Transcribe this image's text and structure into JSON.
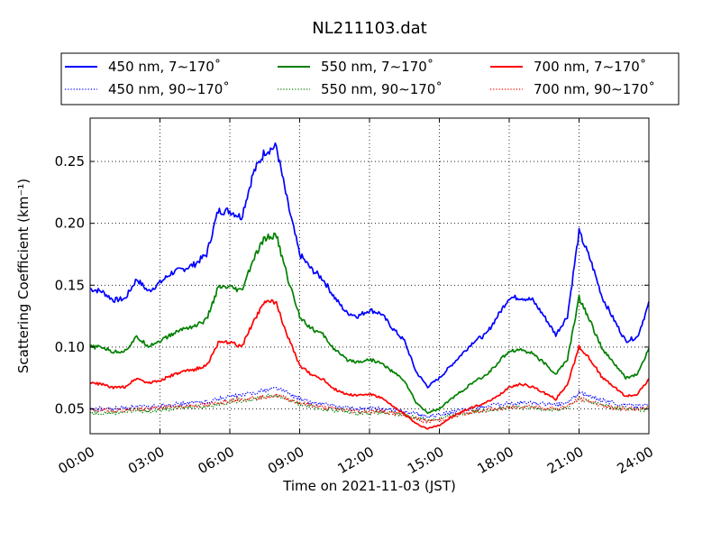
{
  "chart_data": {
    "type": "line",
    "title": "NL211103.dat",
    "xlabel": "Time on 2021-11-03 (JST)",
    "ylabel": "Scattering Coefficient (km⁻¹)",
    "xlim": [
      0,
      24
    ],
    "ylim": [
      0.03,
      0.285
    ],
    "grid": true,
    "legend_position": "top",
    "x_ticks": [
      0,
      3,
      6,
      9,
      12,
      15,
      18,
      21,
      24
    ],
    "x_tick_labels": [
      "00:00",
      "03:00",
      "06:00",
      "09:00",
      "12:00",
      "15:00",
      "18:00",
      "21:00",
      "24:00"
    ],
    "y_ticks": [
      0.05,
      0.1,
      0.15,
      0.2,
      0.25
    ],
    "y_tick_labels": [
      "0.05",
      "0.10",
      "0.15",
      "0.20",
      "0.25"
    ],
    "x": [
      0.0,
      0.5,
      1.0,
      1.5,
      2.0,
      2.5,
      3.0,
      3.5,
      4.0,
      4.5,
      5.0,
      5.5,
      6.0,
      6.5,
      7.0,
      7.5,
      8.0,
      8.5,
      9.0,
      9.5,
      10.0,
      10.5,
      11.0,
      11.5,
      12.0,
      12.5,
      13.0,
      13.5,
      14.0,
      14.5,
      15.0,
      15.5,
      16.0,
      16.5,
      17.0,
      17.5,
      18.0,
      18.5,
      19.0,
      19.5,
      20.0,
      20.5,
      21.0,
      21.5,
      22.0,
      22.5,
      23.0,
      23.5,
      24.0
    ],
    "series": [
      {
        "name": "450 nm, 7∼170˚",
        "color": "#0000ff",
        "style": "solid",
        "values": [
          0.147,
          0.145,
          0.138,
          0.139,
          0.155,
          0.145,
          0.152,
          0.16,
          0.163,
          0.167,
          0.175,
          0.21,
          0.21,
          0.205,
          0.24,
          0.258,
          0.262,
          0.215,
          0.175,
          0.163,
          0.155,
          0.14,
          0.128,
          0.125,
          0.13,
          0.127,
          0.115,
          0.105,
          0.08,
          0.068,
          0.075,
          0.085,
          0.095,
          0.105,
          0.11,
          0.125,
          0.14,
          0.14,
          0.138,
          0.125,
          0.11,
          0.125,
          0.193,
          0.17,
          0.14,
          0.122,
          0.105,
          0.108,
          0.135
        ]
      },
      {
        "name": "550 nm, 7∼170˚",
        "color": "#008000",
        "style": "solid",
        "values": [
          0.1,
          0.1,
          0.096,
          0.097,
          0.108,
          0.101,
          0.105,
          0.11,
          0.115,
          0.117,
          0.122,
          0.148,
          0.148,
          0.145,
          0.17,
          0.188,
          0.19,
          0.155,
          0.125,
          0.115,
          0.11,
          0.098,
          0.09,
          0.088,
          0.09,
          0.087,
          0.08,
          0.073,
          0.055,
          0.047,
          0.05,
          0.058,
          0.065,
          0.072,
          0.077,
          0.087,
          0.097,
          0.098,
          0.095,
          0.087,
          0.078,
          0.09,
          0.14,
          0.12,
          0.098,
          0.087,
          0.075,
          0.078,
          0.098
        ]
      },
      {
        "name": "700 nm, 7∼170˚",
        "color": "#ff0000",
        "style": "solid",
        "values": [
          0.071,
          0.07,
          0.067,
          0.068,
          0.075,
          0.071,
          0.073,
          0.077,
          0.08,
          0.082,
          0.085,
          0.103,
          0.104,
          0.1,
          0.12,
          0.138,
          0.135,
          0.108,
          0.085,
          0.078,
          0.074,
          0.066,
          0.062,
          0.061,
          0.062,
          0.059,
          0.052,
          0.046,
          0.038,
          0.034,
          0.037,
          0.043,
          0.048,
          0.052,
          0.055,
          0.06,
          0.068,
          0.07,
          0.068,
          0.063,
          0.058,
          0.07,
          0.1,
          0.09,
          0.075,
          0.068,
          0.06,
          0.062,
          0.074
        ]
      },
      {
        "name": "450 nm, 90∼170˚",
        "color": "#0000ff",
        "style": "dotted",
        "values": [
          0.05,
          0.05,
          0.05,
          0.051,
          0.052,
          0.051,
          0.053,
          0.054,
          0.054,
          0.055,
          0.056,
          0.058,
          0.06,
          0.061,
          0.063,
          0.065,
          0.067,
          0.063,
          0.058,
          0.055,
          0.054,
          0.052,
          0.051,
          0.05,
          0.05,
          0.05,
          0.049,
          0.048,
          0.046,
          0.044,
          0.045,
          0.047,
          0.049,
          0.051,
          0.052,
          0.053,
          0.054,
          0.055,
          0.055,
          0.054,
          0.053,
          0.055,
          0.063,
          0.06,
          0.057,
          0.055,
          0.053,
          0.052,
          0.053
        ]
      },
      {
        "name": "550 nm, 90∼170˚",
        "color": "#008000",
        "style": "dotted",
        "values": [
          0.047,
          0.047,
          0.047,
          0.048,
          0.049,
          0.048,
          0.05,
          0.05,
          0.051,
          0.052,
          0.052,
          0.054,
          0.056,
          0.057,
          0.058,
          0.06,
          0.061,
          0.058,
          0.054,
          0.052,
          0.05,
          0.049,
          0.048,
          0.047,
          0.047,
          0.047,
          0.046,
          0.045,
          0.043,
          0.041,
          0.042,
          0.044,
          0.046,
          0.048,
          0.049,
          0.05,
          0.051,
          0.051,
          0.051,
          0.05,
          0.049,
          0.051,
          0.058,
          0.056,
          0.053,
          0.051,
          0.05,
          0.049,
          0.05
        ]
      },
      {
        "name": "700 nm, 90∼170˚",
        "color": "#ff0000",
        "style": "dotted",
        "values": [
          0.049,
          0.049,
          0.049,
          0.049,
          0.05,
          0.05,
          0.051,
          0.052,
          0.052,
          0.053,
          0.053,
          0.055,
          0.057,
          0.058,
          0.059,
          0.06,
          0.061,
          0.058,
          0.055,
          0.053,
          0.051,
          0.05,
          0.049,
          0.048,
          0.048,
          0.048,
          0.047,
          0.045,
          0.042,
          0.04,
          0.041,
          0.043,
          0.046,
          0.048,
          0.049,
          0.05,
          0.051,
          0.052,
          0.052,
          0.051,
          0.05,
          0.052,
          0.058,
          0.056,
          0.053,
          0.051,
          0.05,
          0.05,
          0.051
        ]
      }
    ]
  }
}
